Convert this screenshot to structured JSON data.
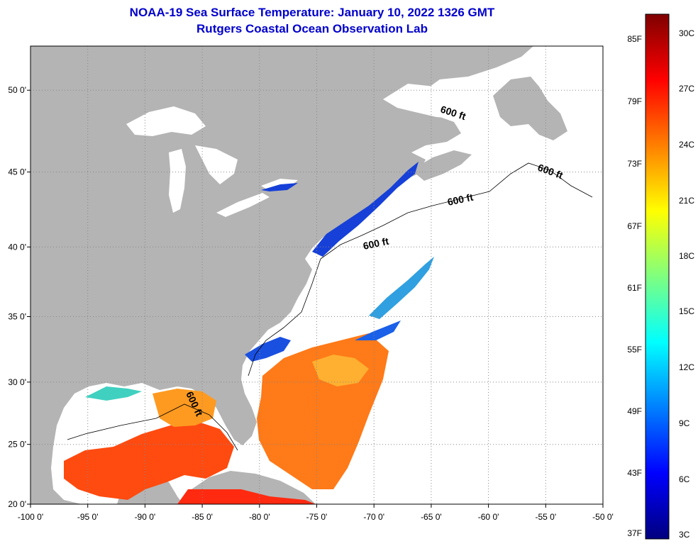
{
  "title": {
    "line1": "NOAA-19 Sea Surface Temperature:  January 10, 2022 1326 GMT",
    "line2": "Rutgers Coastal Ocean Observation Lab"
  },
  "axes": {
    "lon_labels": [
      "-100 0'",
      "-95 0'",
      "-90 0'",
      "-85 0'",
      "-80 0'",
      "-75 0'",
      "-70 0'",
      "-65 0'",
      "-60 0'",
      "-55 0'",
      "-50 0'"
    ],
    "lat_labels": [
      "50 0'",
      "45 0'",
      "40 0'",
      "35 0'",
      "30 0'",
      "25 0'",
      "20 0'"
    ],
    "lon_values": [
      -100,
      -95,
      -90,
      -85,
      -80,
      -75,
      -70,
      -65,
      -60,
      -55,
      -50
    ],
    "lat_values": [
      50,
      45,
      40,
      35,
      30,
      25,
      20
    ],
    "grid": "dotted"
  },
  "isobath_labels": [
    "600 ft",
    "600 ft",
    "600 ft",
    "600 ft",
    "600 ft"
  ],
  "colorbar": {
    "fahrenheit_labels": [
      "85F",
      "79F",
      "73F",
      "67F",
      "61F",
      "55F",
      "49F",
      "43F",
      "37F"
    ],
    "celsius_labels": [
      "30C",
      "27C",
      "24C",
      "21C",
      "18C",
      "15C",
      "12C",
      "9C",
      "6C",
      "3C"
    ],
    "colors": [
      "#7f0000",
      "#ff0000",
      "#ff7f00",
      "#ffff00",
      "#7fff7f",
      "#00ffff",
      "#007fff",
      "#0000ff",
      "#00007f"
    ]
  },
  "map_colors": {
    "land": "#b4b4b4",
    "water_cloud": "#ffffff",
    "sst_warm": "#ff4a10",
    "sst_mid": "#ff9a20",
    "sst_cool": "#1a50e0"
  }
}
